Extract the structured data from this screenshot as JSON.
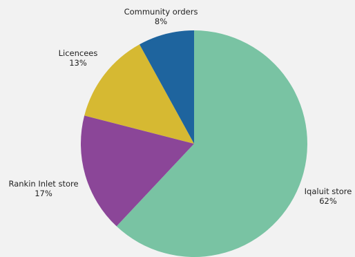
{
  "chart_data": {
    "type": "pie",
    "start_angle_deg": 0,
    "direction": "clockwise",
    "slices": [
      {
        "label": "Iqaluit store",
        "value": 62,
        "value_label": "62%",
        "color": "#79c3a3"
      },
      {
        "label": "Rankin Inlet store",
        "value": 17,
        "value_label": "17%",
        "color": "#8b4698"
      },
      {
        "label": "Licencees",
        "value": 13,
        "value_label": "13%",
        "color": "#d6b932"
      },
      {
        "label": "Community orders",
        "value": 8,
        "value_label": "8%",
        "color": "#1e649e"
      }
    ]
  }
}
